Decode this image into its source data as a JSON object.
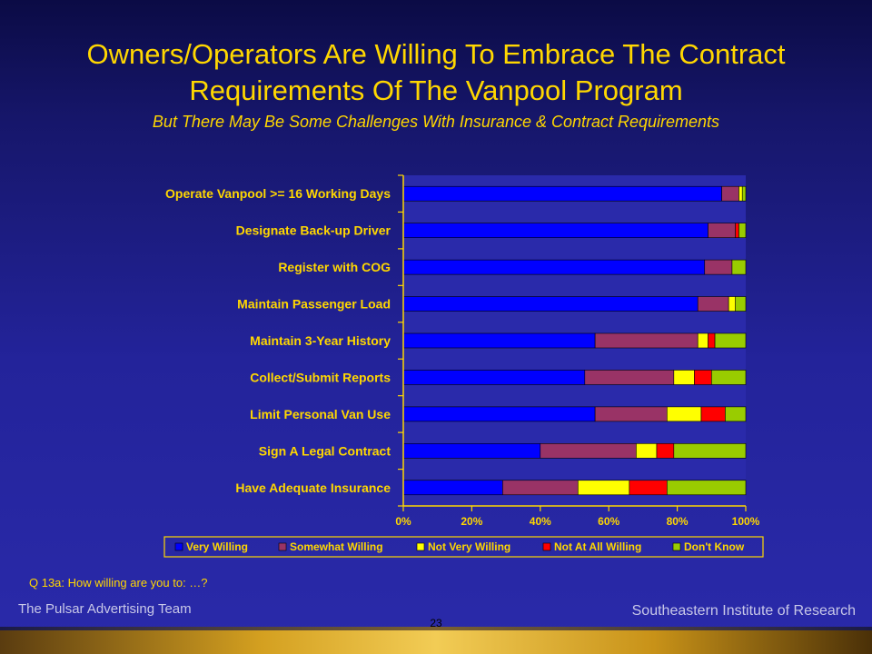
{
  "title": "Owners/Operators Are Willing To Embrace The Contract Requirements Of The Vanpool Program",
  "subtitle": "But There May Be Some Challenges With Insurance & Contract Requirements",
  "question": "Q 13a:  How willing are you to: …?",
  "footer": {
    "left": "The Pulsar Advertising Team",
    "right": "Southeastern Institute of Research",
    "page": "23"
  },
  "colors": {
    "title": "#ffd700",
    "plot_background": "#2a2aaa",
    "Very Willing": "#0000ff",
    "Somewhat Willing": "#993366",
    "Not Very Willing": "#ffff00",
    "Not At All Willing": "#ff0000",
    "Don't Know": "#99cc00"
  },
  "chart_data": {
    "type": "bar",
    "orientation": "horizontal",
    "stacked": true,
    "percent": true,
    "categories": [
      "Operate Vanpool >= 16 Working Days",
      "Designate Back-up Driver",
      "Register with COG",
      "Maintain Passenger Load",
      "Maintain 3-Year History",
      "Collect/Submit Reports",
      "Limit Personal Van Use",
      "Sign A Legal Contract",
      "Have Adequate Insurance"
    ],
    "series": [
      {
        "name": "Very Willing",
        "values": [
          93,
          89,
          88,
          86,
          56,
          53,
          56,
          40,
          29
        ]
      },
      {
        "name": "Somewhat Willing",
        "values": [
          5,
          8,
          8,
          9,
          30,
          26,
          21,
          28,
          22
        ]
      },
      {
        "name": "Not Very Willing",
        "values": [
          1,
          0,
          0,
          2,
          3,
          6,
          10,
          6,
          15
        ]
      },
      {
        "name": "Not At All Willing",
        "values": [
          0,
          1,
          0,
          0,
          2,
          5,
          7,
          5,
          11
        ]
      },
      {
        "name": "Don't Know",
        "values": [
          1,
          2,
          4,
          3,
          9,
          10,
          6,
          21,
          23
        ]
      }
    ],
    "xlim": [
      0,
      100
    ],
    "xticks": [
      "0%",
      "20%",
      "40%",
      "60%",
      "80%",
      "100%"
    ],
    "grid": false,
    "legend_position": "bottom"
  }
}
